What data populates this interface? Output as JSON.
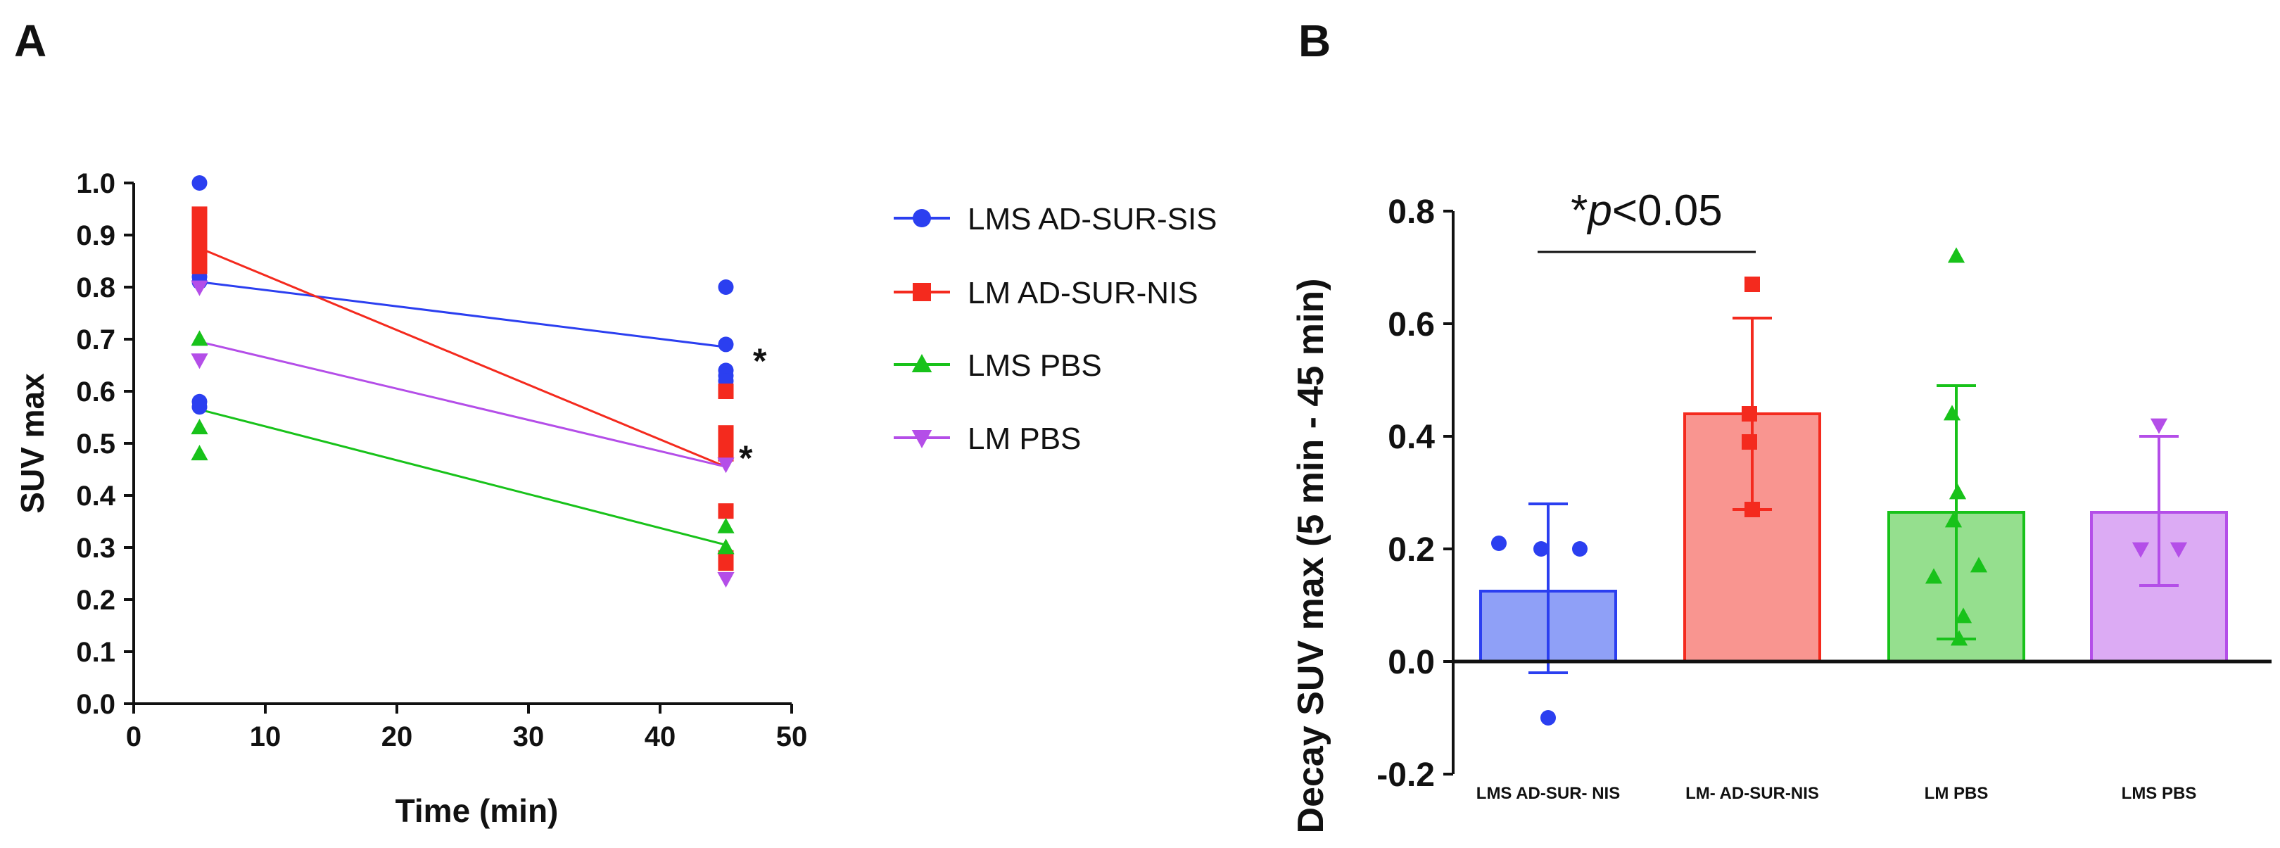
{
  "panels": {
    "a_label": "A",
    "b_label": "B"
  },
  "chart_data": [
    {
      "type": "scatter",
      "panel": "A",
      "xlabel": "Time (min)",
      "ylabel": "SUV max",
      "xlim": [
        0,
        50
      ],
      "ylim": [
        0,
        1.0
      ],
      "x_ticks": [
        "0",
        "10",
        "20",
        "30",
        "40",
        "50"
      ],
      "y_ticks": [
        "0.0",
        "0.1",
        "0.2",
        "0.3",
        "0.4",
        "0.5",
        "0.6",
        "0.7",
        "0.8",
        "0.9",
        "1.0"
      ],
      "significance_marks": [
        "*",
        "*"
      ],
      "series": [
        {
          "name": "LMS AD-SUR-SIS",
          "color": "#2b3ff0",
          "marker": "circle",
          "mean_line": [
            [
              5,
              0.81
            ],
            [
              45,
              0.685
            ]
          ],
          "points": [
            [
              5,
              1.0
            ],
            [
              5,
              0.85
            ],
            [
              5,
              0.82
            ],
            [
              5,
              0.81
            ],
            [
              5,
              0.58
            ],
            [
              5,
              0.57
            ],
            [
              45,
              0.8
            ],
            [
              45,
              0.64
            ],
            [
              45,
              0.63
            ],
            [
              45,
              0.62
            ],
            [
              45,
              0.69
            ]
          ]
        },
        {
          "name": "LM AD-SUR-NIS",
          "color": "#f42a1e",
          "marker": "square",
          "mean_line": [
            [
              5,
              0.875
            ],
            [
              45,
              0.455
            ]
          ],
          "points": [
            [
              5,
              0.94
            ],
            [
              5,
              0.92
            ],
            [
              5,
              0.9
            ],
            [
              5,
              0.88
            ],
            [
              5,
              0.86
            ],
            [
              5,
              0.84
            ],
            [
              45,
              0.6
            ],
            [
              45,
              0.52
            ],
            [
              45,
              0.5
            ],
            [
              45,
              0.48
            ],
            [
              45,
              0.37
            ],
            [
              45,
              0.28
            ],
            [
              45,
              0.27
            ]
          ]
        },
        {
          "name": "LMS PBS",
          "color": "#18c21a",
          "marker": "triangle-up",
          "mean_line": [
            [
              5,
              0.565
            ],
            [
              45,
              0.305
            ]
          ],
          "points": [
            [
              5,
              0.7
            ],
            [
              5,
              0.53
            ],
            [
              5,
              0.48
            ],
            [
              45,
              0.34
            ],
            [
              45,
              0.3
            ]
          ]
        },
        {
          "name": "LM PBS",
          "color": "#b44ee8",
          "marker": "triangle-down",
          "mean_line": [
            [
              5,
              0.695
            ],
            [
              45,
              0.455
            ]
          ],
          "points": [
            [
              5,
              0.8
            ],
            [
              5,
              0.66
            ],
            [
              45,
              0.46
            ],
            [
              45,
              0.24
            ]
          ]
        }
      ]
    },
    {
      "type": "bar",
      "panel": "B",
      "ylabel": "Decay SUV max (5 min - 45 min)",
      "ylim": [
        -0.2,
        0.8
      ],
      "y_ticks": [
        "-0.2",
        "0.0",
        "0.2",
        "0.4",
        "0.6",
        "0.8"
      ],
      "annotation": {
        "star": "*",
        "p": "p",
        "rest": "<0.05"
      },
      "categories": [
        "LMS AD-SUR- NIS",
        "LM- AD-SUR-NIS",
        "LM PBS",
        "LMS PBS"
      ],
      "bars": [
        {
          "mean": 0.125,
          "err_low": -0.02,
          "err_high": 0.28,
          "color": "#2b3ff0",
          "fill": "#8fa0f7",
          "marker": "circle",
          "points": [
            0.21,
            0.2,
            0.2,
            -0.1
          ]
        },
        {
          "mean": 0.44,
          "err_low": 0.27,
          "err_high": 0.61,
          "color": "#f42a1e",
          "fill": "#f99590",
          "marker": "square",
          "points": [
            0.67,
            0.44,
            0.39,
            0.27
          ]
        },
        {
          "mean": 0.265,
          "err_low": 0.04,
          "err_high": 0.49,
          "color": "#18c21a",
          "fill": "#95df8e",
          "marker": "triangle-up",
          "points": [
            0.72,
            0.44,
            0.3,
            0.25,
            0.17,
            0.15,
            0.08,
            0.04
          ]
        },
        {
          "mean": 0.265,
          "err_low": 0.135,
          "err_high": 0.4,
          "color": "#b44ee8",
          "fill": "#dcabf4",
          "marker": "triangle-down",
          "points": [
            0.42,
            0.2,
            0.2
          ]
        }
      ]
    }
  ]
}
